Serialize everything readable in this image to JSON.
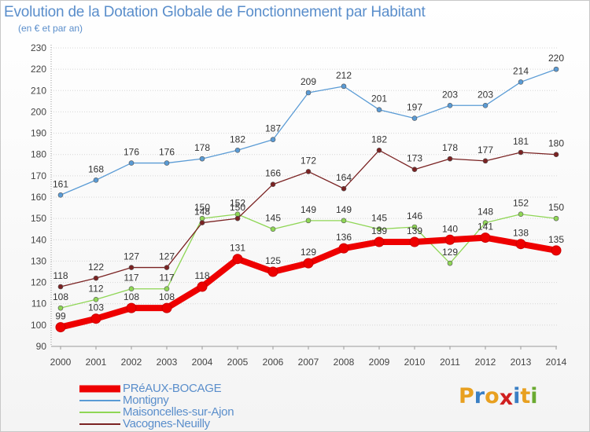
{
  "title": "Evolution de la Dotation Globale de Fonctionnement par Habitant",
  "subtitle": "(en € et par an)",
  "logo": {
    "text": "Proxiti",
    "colors": [
      "#e8a020",
      "#3a7fc4",
      "#e8a020",
      "#d02020",
      "#3a7fc4",
      "#e8a020",
      "#6aaa30"
    ]
  },
  "chart_data": {
    "type": "line",
    "title": "Evolution de la Dotation Globale de Fonctionnement par Habitant",
    "subtitle": "(en € et par an)",
    "xlabel": "",
    "ylabel": "",
    "x": [
      "2000",
      "2001",
      "2002",
      "2003",
      "2004",
      "2005",
      "2006",
      "2007",
      "2008",
      "2009",
      "2010",
      "2011",
      "2012",
      "2013",
      "2014"
    ],
    "ylim": [
      90,
      230
    ],
    "yticks": [
      "90",
      "100",
      "110",
      "120",
      "130",
      "140",
      "150",
      "160",
      "170",
      "180",
      "190",
      "200",
      "210",
      "220",
      "230"
    ],
    "grid": "horizontal",
    "legend_position": "bottom-left",
    "series": [
      {
        "name": "PRéAUX-BOCAGE",
        "color": "#ee0000",
        "emphasis": true,
        "values": [
          99,
          103,
          108,
          108,
          118,
          131,
          125,
          129,
          136,
          139,
          139,
          140,
          141,
          138,
          135
        ],
        "labels": [
          "99",
          "103",
          "108",
          "108",
          "118",
          "131",
          "125",
          "129",
          "136",
          "139",
          "139",
          "140",
          "141",
          "138",
          "135"
        ]
      },
      {
        "name": "Montigny",
        "color": "#5a9bd5",
        "values": [
          161,
          168,
          176,
          176,
          178,
          182,
          187,
          209,
          212,
          201,
          197,
          203,
          203,
          214,
          220
        ],
        "labels": [
          "161",
          "168",
          "176",
          "176",
          "178",
          "182",
          "187",
          "209",
          "212",
          "201",
          "197",
          "203",
          "203",
          "214",
          "220"
        ]
      },
      {
        "name": "Maisoncelles-sur-Ajon",
        "color": "#8fd655",
        "values": [
          108,
          112,
          117,
          117,
          150,
          152,
          145,
          149,
          149,
          145,
          146,
          129,
          148,
          152,
          150
        ],
        "labels": [
          "108",
          "112",
          "117",
          "117",
          "150",
          "152",
          "145",
          "149",
          "149",
          "145",
          "146",
          "129",
          "148",
          "152",
          "150"
        ]
      },
      {
        "name": "Vacognes-Neuilly",
        "color": "#7a2222",
        "values": [
          118,
          122,
          127,
          127,
          148,
          150,
          166,
          172,
          164,
          182,
          173,
          178,
          177,
          181,
          180
        ],
        "labels": [
          "118",
          "122",
          "127",
          "127",
          "148",
          "150",
          "166",
          "172",
          "164",
          "182",
          "173",
          "178",
          "177",
          "181",
          "180"
        ]
      }
    ]
  }
}
